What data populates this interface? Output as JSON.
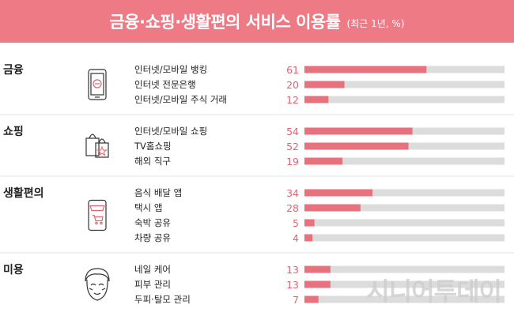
{
  "header": {
    "title": "금융·쇼핑·생활편의 서비스 이용률",
    "subtitle": "(최근 1년, %)"
  },
  "watermark": "시니어투데이",
  "colors": {
    "header_bg": "#ee7a86",
    "bar_fill": "#e8717e",
    "bar_track": "#dcdcdc",
    "value_text": "#e8606e"
  },
  "chart_data": {
    "type": "bar",
    "orientation": "horizontal",
    "title": "금융·쇼핑·생활편의 서비스 이용률",
    "subtitle": "(최근 1년, %)",
    "xlim": [
      0,
      100
    ],
    "grid": false,
    "groups": [
      {
        "category": "금융",
        "icon": "mobile-banking-icon",
        "items": [
          {
            "label": "인터넷/모바일 뱅킹",
            "value": 61
          },
          {
            "label": "인터넷 전문은행",
            "value": 20
          },
          {
            "label": "인터넷/모바일 주식 거래",
            "value": 12
          }
        ]
      },
      {
        "category": "쇼핑",
        "icon": "shopping-bag-icon",
        "items": [
          {
            "label": "인터넷/모바일 쇼핑",
            "value": 54
          },
          {
            "label": "TV홈쇼핑",
            "value": 52
          },
          {
            "label": "해외 직구",
            "value": 19
          }
        ]
      },
      {
        "category": "생활편의",
        "icon": "mobile-cart-icon",
        "items": [
          {
            "label": "음식 배달 앱",
            "value": 34
          },
          {
            "label": "택시 앱",
            "value": 28
          },
          {
            "label": "숙박 공유",
            "value": 5
          },
          {
            "label": "차량 공유",
            "value": 4
          }
        ]
      },
      {
        "category": "미용",
        "icon": "face-mask-icon",
        "items": [
          {
            "label": "네일 케어",
            "value": 13
          },
          {
            "label": "피부 관리",
            "value": 13
          },
          {
            "label": "두피·탈모 관리",
            "value": 7
          }
        ]
      }
    ]
  }
}
